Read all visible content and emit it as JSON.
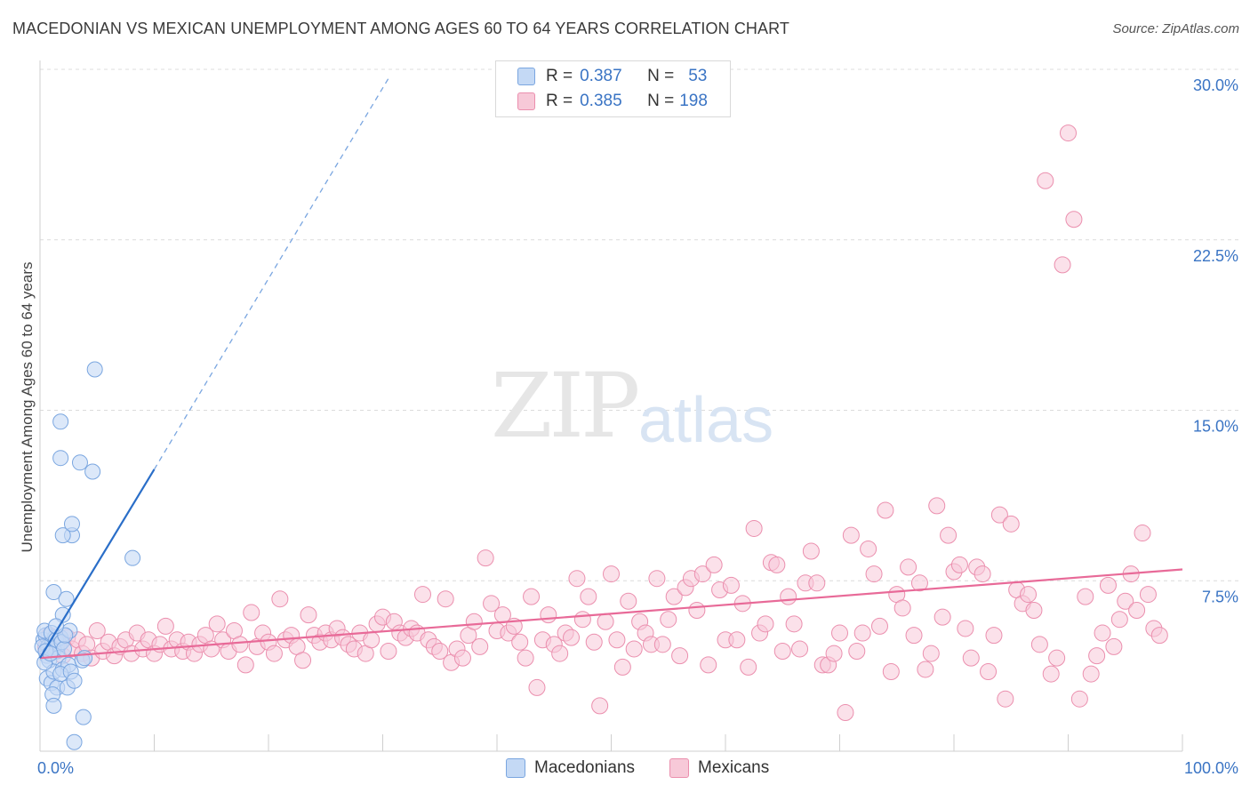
{
  "title": "MACEDONIAN VS MEXICAN UNEMPLOYMENT AMONG AGES 60 TO 64 YEARS CORRELATION CHART",
  "source": "Source: ZipAtlas.com",
  "watermark": {
    "zip": "ZIP",
    "atlas": "atlas"
  },
  "legend": {
    "r_label": "R =",
    "n_label": "N =",
    "macedonians": {
      "r": "0.387",
      "n": "53"
    },
    "mexicans": {
      "r": "0.385",
      "n": "198"
    }
  },
  "bottom_legend": {
    "macedonians": "Macedonians",
    "mexicans": "Mexicans"
  },
  "colors": {
    "macedonians_fill": "#c4d9f5",
    "macedonians_stroke": "#7aa6e0",
    "macedonians_line": "#2a6ec8",
    "mexicans_fill": "#f7c9d8",
    "mexicans_stroke": "#eb8fae",
    "mexicans_line": "#e86a98",
    "value_text": "#3a74c4",
    "grid": "#dcdcdc"
  },
  "chart_data": {
    "type": "scatter",
    "title": "MACEDONIAN VS MEXICAN UNEMPLOYMENT AMONG AGES 60 TO 64 YEARS CORRELATION CHART",
    "xlabel": "",
    "ylabel": "Unemployment Among Ages 60 to 64 years",
    "xlim": [
      0,
      100
    ],
    "ylim": [
      0,
      30
    ],
    "x_tick_labels": [
      "0.0%",
      "100.0%"
    ],
    "y_ticks": [
      7.5,
      15.0,
      22.5,
      30.0
    ],
    "y_tick_labels": [
      "7.5%",
      "15.0%",
      "22.5%",
      "30.0%"
    ],
    "grid": true,
    "legend_position": "top-center",
    "series": [
      {
        "name": "Macedonians",
        "r": 0.387,
        "n": 53,
        "trend": {
          "x": [
            0,
            10
          ],
          "y": [
            4.1,
            12.4
          ]
        },
        "trend_extension": {
          "x": [
            10,
            30.5
          ],
          "y": [
            12.4,
            29.6
          ]
        },
        "points": [
          [
            0.3,
            4.9
          ],
          [
            0.5,
            5.1
          ],
          [
            0.7,
            4.6
          ],
          [
            0.9,
            4.3
          ],
          [
            1.1,
            4.8
          ],
          [
            1.3,
            5.0
          ],
          [
            1.5,
            4.4
          ],
          [
            1.7,
            4.7
          ],
          [
            0.4,
            5.3
          ],
          [
            0.6,
            4.2
          ],
          [
            0.8,
            4.0
          ],
          [
            1.0,
            5.2
          ],
          [
            1.2,
            4.5
          ],
          [
            1.4,
            4.9
          ],
          [
            1.6,
            4.1
          ],
          [
            1.8,
            5.0
          ],
          [
            0.2,
            4.6
          ],
          [
            0.5,
            4.4
          ],
          [
            1.9,
            4.8
          ],
          [
            2.1,
            4.5
          ],
          [
            0.6,
            3.2
          ],
          [
            1.0,
            3.0
          ],
          [
            1.2,
            3.5
          ],
          [
            1.5,
            2.8
          ],
          [
            2.0,
            3.6
          ],
          [
            2.5,
            3.8
          ],
          [
            1.8,
            3.4
          ],
          [
            1.1,
            2.5
          ],
          [
            1.2,
            2.0
          ],
          [
            2.4,
            2.8
          ],
          [
            2.7,
            3.5
          ],
          [
            3.0,
            3.1
          ],
          [
            3.7,
            4.0
          ],
          [
            3.9,
            4.1
          ],
          [
            2.6,
            5.3
          ],
          [
            2.0,
            6.0
          ],
          [
            1.2,
            7.0
          ],
          [
            2.3,
            6.7
          ],
          [
            2.8,
            9.5
          ],
          [
            2.0,
            9.5
          ],
          [
            2.8,
            10.0
          ],
          [
            1.8,
            12.9
          ],
          [
            3.5,
            12.7
          ],
          [
            4.6,
            12.3
          ],
          [
            1.8,
            14.5
          ],
          [
            4.8,
            16.8
          ],
          [
            8.1,
            8.5
          ],
          [
            3.0,
            0.4
          ],
          [
            3.8,
            1.5
          ],
          [
            0.4,
            3.9
          ],
          [
            2.2,
            5.1
          ],
          [
            1.4,
            5.5
          ],
          [
            0.9,
            4.3
          ]
        ]
      },
      {
        "name": "Mexicans",
        "r": 0.385,
        "n": 198,
        "trend": {
          "x": [
            0,
            100
          ],
          "y": [
            4.1,
            8.0
          ]
        },
        "points": [
          [
            0.5,
            4.6
          ],
          [
            0.8,
            5.1
          ],
          [
            1.2,
            4.4
          ],
          [
            1.6,
            4.8
          ],
          [
            2.0,
            4.2
          ],
          [
            2.4,
            5.0
          ],
          [
            2.8,
            4.5
          ],
          [
            3.3,
            4.9
          ],
          [
            3.7,
            4.3
          ],
          [
            4.1,
            4.7
          ],
          [
            4.5,
            4.1
          ],
          [
            5.0,
            5.3
          ],
          [
            5.5,
            4.4
          ],
          [
            6.0,
            4.8
          ],
          [
            6.5,
            4.2
          ],
          [
            7.0,
            4.6
          ],
          [
            7.5,
            4.9
          ],
          [
            8.0,
            4.3
          ],
          [
            8.5,
            5.2
          ],
          [
            9.0,
            4.5
          ],
          [
            9.5,
            4.9
          ],
          [
            10.0,
            4.3
          ],
          [
            10.5,
            4.7
          ],
          [
            11.0,
            5.5
          ],
          [
            11.5,
            4.5
          ],
          [
            12.0,
            4.9
          ],
          [
            12.5,
            4.4
          ],
          [
            13.0,
            4.8
          ],
          [
            13.5,
            4.3
          ],
          [
            14.0,
            4.7
          ],
          [
            14.5,
            5.1
          ],
          [
            15.0,
            4.5
          ],
          [
            15.5,
            5.6
          ],
          [
            16.0,
            4.9
          ],
          [
            16.5,
            4.4
          ],
          [
            17.0,
            5.3
          ],
          [
            17.5,
            4.7
          ],
          [
            18.0,
            3.8
          ],
          [
            18.5,
            6.1
          ],
          [
            19.0,
            4.6
          ],
          [
            19.5,
            5.2
          ],
          [
            20.0,
            4.8
          ],
          [
            20.5,
            4.3
          ],
          [
            21.0,
            6.7
          ],
          [
            21.5,
            4.9
          ],
          [
            22.0,
            5.1
          ],
          [
            22.5,
            4.6
          ],
          [
            23.0,
            4.0
          ],
          [
            23.5,
            6.0
          ],
          [
            24.0,
            5.1
          ],
          [
            24.5,
            4.8
          ],
          [
            25.0,
            5.2
          ],
          [
            25.5,
            4.9
          ],
          [
            26.0,
            5.4
          ],
          [
            26.5,
            5.0
          ],
          [
            27.0,
            4.7
          ],
          [
            27.5,
            4.5
          ],
          [
            28.0,
            5.2
          ],
          [
            28.5,
            4.3
          ],
          [
            29.0,
            4.9
          ],
          [
            29.5,
            5.6
          ],
          [
            30.0,
            5.9
          ],
          [
            30.5,
            4.4
          ],
          [
            31.0,
            5.7
          ],
          [
            31.5,
            5.2
          ],
          [
            32.0,
            5.0
          ],
          [
            32.5,
            5.4
          ],
          [
            33.0,
            5.2
          ],
          [
            33.5,
            6.9
          ],
          [
            34.0,
            4.9
          ],
          [
            34.5,
            4.6
          ],
          [
            35.0,
            4.4
          ],
          [
            35.5,
            6.7
          ],
          [
            36.0,
            3.9
          ],
          [
            36.5,
            4.5
          ],
          [
            37.0,
            4.1
          ],
          [
            37.5,
            5.1
          ],
          [
            38.0,
            5.7
          ],
          [
            38.5,
            4.6
          ],
          [
            39.0,
            8.5
          ],
          [
            39.5,
            6.5
          ],
          [
            40.0,
            5.3
          ],
          [
            40.5,
            6.0
          ],
          [
            41.0,
            5.2
          ],
          [
            41.5,
            5.5
          ],
          [
            42.0,
            4.8
          ],
          [
            42.5,
            4.1
          ],
          [
            43.0,
            6.8
          ],
          [
            43.5,
            2.8
          ],
          [
            44.0,
            4.9
          ],
          [
            44.5,
            6.0
          ],
          [
            45.0,
            4.7
          ],
          [
            45.5,
            4.3
          ],
          [
            46.0,
            5.2
          ],
          [
            46.5,
            5.0
          ],
          [
            47.0,
            7.6
          ],
          [
            47.5,
            5.8
          ],
          [
            48.0,
            6.8
          ],
          [
            48.5,
            4.8
          ],
          [
            49.0,
            2.0
          ],
          [
            49.5,
            5.7
          ],
          [
            50.0,
            7.8
          ],
          [
            50.5,
            4.9
          ],
          [
            51.0,
            3.7
          ],
          [
            51.5,
            6.6
          ],
          [
            52.0,
            4.5
          ],
          [
            52.5,
            5.7
          ],
          [
            53.0,
            5.2
          ],
          [
            53.5,
            4.7
          ],
          [
            54.0,
            7.6
          ],
          [
            54.5,
            4.7
          ],
          [
            55.0,
            5.8
          ],
          [
            55.5,
            6.8
          ],
          [
            56.0,
            4.2
          ],
          [
            56.5,
            7.2
          ],
          [
            57.0,
            7.6
          ],
          [
            57.5,
            6.2
          ],
          [
            58.0,
            7.8
          ],
          [
            58.5,
            3.8
          ],
          [
            59.0,
            8.2
          ],
          [
            59.5,
            7.1
          ],
          [
            60.0,
            4.9
          ],
          [
            60.5,
            7.3
          ],
          [
            61.0,
            4.9
          ],
          [
            61.5,
            6.5
          ],
          [
            62.0,
            3.7
          ],
          [
            62.5,
            9.8
          ],
          [
            63.0,
            5.2
          ],
          [
            63.5,
            5.6
          ],
          [
            64.0,
            8.3
          ],
          [
            64.5,
            8.2
          ],
          [
            65.0,
            4.4
          ],
          [
            65.5,
            6.8
          ],
          [
            66.0,
            5.6
          ],
          [
            66.5,
            4.5
          ],
          [
            67.0,
            7.4
          ],
          [
            67.5,
            8.8
          ],
          [
            68.0,
            7.4
          ],
          [
            68.5,
            3.8
          ],
          [
            69.0,
            3.8
          ],
          [
            69.5,
            4.3
          ],
          [
            70.0,
            5.2
          ],
          [
            70.5,
            1.7
          ],
          [
            71.0,
            9.5
          ],
          [
            71.5,
            4.4
          ],
          [
            72.0,
            5.2
          ],
          [
            72.5,
            8.9
          ],
          [
            73.0,
            7.8
          ],
          [
            73.5,
            5.5
          ],
          [
            74.0,
            10.6
          ],
          [
            74.5,
            3.5
          ],
          [
            75.0,
            6.9
          ],
          [
            75.5,
            6.3
          ],
          [
            76.0,
            8.1
          ],
          [
            76.5,
            5.1
          ],
          [
            77.0,
            7.4
          ],
          [
            77.5,
            3.6
          ],
          [
            78.0,
            4.3
          ],
          [
            78.5,
            10.8
          ],
          [
            79.0,
            5.9
          ],
          [
            79.5,
            9.5
          ],
          [
            80.0,
            7.9
          ],
          [
            80.5,
            8.2
          ],
          [
            81.0,
            5.4
          ],
          [
            81.5,
            4.1
          ],
          [
            82.0,
            8.1
          ],
          [
            82.5,
            7.8
          ],
          [
            83.0,
            3.5
          ],
          [
            83.5,
            5.1
          ],
          [
            84.0,
            10.4
          ],
          [
            84.5,
            2.3
          ],
          [
            85.0,
            10.0
          ],
          [
            85.5,
            7.1
          ],
          [
            86.0,
            6.5
          ],
          [
            86.5,
            6.9
          ],
          [
            87.0,
            6.2
          ],
          [
            87.5,
            4.7
          ],
          [
            88.0,
            25.1
          ],
          [
            88.5,
            3.4
          ],
          [
            89.0,
            4.1
          ],
          [
            89.5,
            21.4
          ],
          [
            90.0,
            27.2
          ],
          [
            90.5,
            23.4
          ],
          [
            91.0,
            2.3
          ],
          [
            91.5,
            6.8
          ],
          [
            92.0,
            3.4
          ],
          [
            92.5,
            4.2
          ],
          [
            93.0,
            5.2
          ],
          [
            93.5,
            7.3
          ],
          [
            94.0,
            4.6
          ],
          [
            94.5,
            5.8
          ],
          [
            95.0,
            6.6
          ],
          [
            95.5,
            7.8
          ],
          [
            96.0,
            6.2
          ],
          [
            96.5,
            9.6
          ],
          [
            97.0,
            6.9
          ],
          [
            97.5,
            5.4
          ],
          [
            98.0,
            5.1
          ]
        ]
      }
    ]
  }
}
